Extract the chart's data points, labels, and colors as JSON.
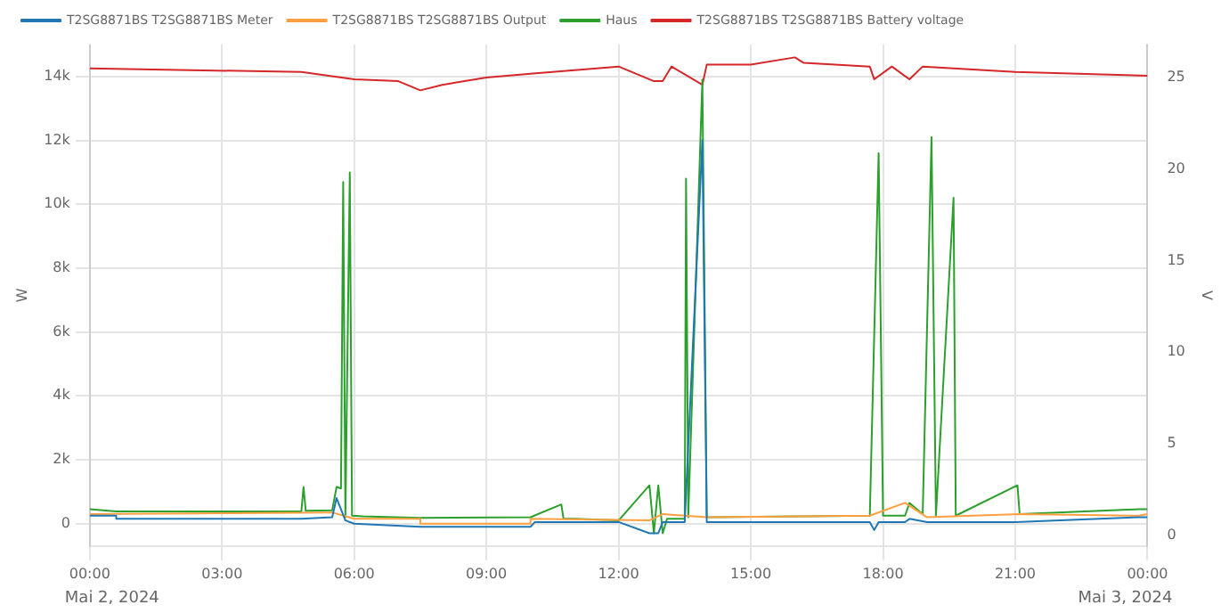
{
  "chart_data": {
    "type": "line",
    "ylabel": "W",
    "y2label": "V",
    "legend": "top",
    "marker": "none",
    "grid": true,
    "line_style": "solid",
    "xlim": [
      0,
      24
    ],
    "xticks": [
      {
        "value": 0,
        "label": "00:00"
      },
      {
        "value": 3,
        "label": "03:00"
      },
      {
        "value": 6,
        "label": "06:00"
      },
      {
        "value": 9,
        "label": "09:00"
      },
      {
        "value": 12,
        "label": "12:00"
      },
      {
        "value": 15,
        "label": "15:00"
      },
      {
        "value": 18,
        "label": "18:00"
      },
      {
        "value": 21,
        "label": "21:00"
      },
      {
        "value": 24,
        "label": "00:00"
      }
    ],
    "ylim": [
      -700,
      15000
    ],
    "yticks": [
      {
        "value": 0,
        "label": "0"
      },
      {
        "value": 2000,
        "label": "2k"
      },
      {
        "value": 4000,
        "label": "4k"
      },
      {
        "value": 6000,
        "label": "6k"
      },
      {
        "value": 8000,
        "label": "8k"
      },
      {
        "value": 10000,
        "label": "10k"
      },
      {
        "value": 12000,
        "label": "12k"
      },
      {
        "value": 14000,
        "label": "14k"
      }
    ],
    "y2lim": [
      -0.6,
      26.8
    ],
    "y2ticks": [
      0,
      5,
      10,
      15,
      20,
      25
    ],
    "annotations": [
      "Mai 2, 2024",
      "Mai 3, 2024"
    ],
    "series": [
      {
        "name": "T2SG8871BS T2SG8871BS Meter",
        "color": "#1f77b4",
        "x": [
          0,
          0.6,
          0.6,
          4.8,
          5.5,
          5.6,
          5.8,
          6,
          7.5,
          10,
          10.1,
          12,
          12.7,
          12.9,
          13,
          13.5,
          13.9,
          14,
          17.7,
          17.8,
          17.9,
          18.5,
          18.6,
          19,
          21,
          23.8,
          24
        ],
        "values": [
          250,
          250,
          150,
          150,
          200,
          800,
          100,
          0,
          -100,
          -100,
          50,
          50,
          -300,
          -300,
          50,
          50,
          12000,
          50,
          50,
          -200,
          50,
          50,
          150,
          50,
          50,
          200,
          200
        ]
      },
      {
        "name": "T2SG8871BS T2SG8871BS Output",
        "color": "#ff9f40",
        "x": [
          0,
          5.5,
          6,
          7.5,
          7.5,
          10,
          10,
          12.7,
          13,
          14,
          17.7,
          18.5,
          19,
          21.1,
          23.8,
          24
        ],
        "values": [
          300,
          350,
          150,
          150,
          0,
          0,
          150,
          100,
          300,
          200,
          250,
          650,
          200,
          300,
          250,
          300
        ]
      },
      {
        "name": "Haus",
        "color": "#2ca02c",
        "x": [
          0,
          0.6,
          0.6,
          4.8,
          4.85,
          4.9,
          5.5,
          5.6,
          5.7,
          5.75,
          5.8,
          5.9,
          5.95,
          6.2,
          7.5,
          10,
          10.7,
          10.75,
          11,
          12,
          12.7,
          12.8,
          12.9,
          13,
          13.1,
          13.5,
          13.53,
          13.58,
          13.9,
          14,
          14.1,
          17.7,
          17.9,
          18,
          18.5,
          18.6,
          18.9,
          19.1,
          19.2,
          19.6,
          19.65,
          21.05,
          21.1,
          23.8,
          24
        ],
        "values": [
          450,
          380,
          380,
          380,
          1150,
          400,
          420,
          1150,
          1100,
          10700,
          200,
          11000,
          250,
          230,
          180,
          200,
          600,
          150,
          150,
          100,
          1200,
          -300,
          1200,
          -300,
          150,
          150,
          10800,
          200,
          13900,
          200,
          200,
          250,
          11600,
          250,
          250,
          650,
          300,
          12100,
          250,
          10200,
          250,
          1200,
          300,
          450,
          450
        ]
      },
      {
        "name": "T2SG8871BS T2SG8871BS Battery voltage",
        "color": "#d62728",
        "axis": "y2",
        "x": [
          0,
          4.8,
          6,
          7,
          7.5,
          8,
          9,
          10,
          11,
          12,
          12.8,
          13,
          13.2,
          13.9,
          14,
          15,
          16,
          16.2,
          17.7,
          17.8,
          18.2,
          18.6,
          18.9,
          21,
          24
        ],
        "values": [
          25.5,
          25.3,
          24.9,
          24.8,
          24.3,
          24.6,
          25,
          25.2,
          25.4,
          25.6,
          24.8,
          24.8,
          25.6,
          24.6,
          25.7,
          25.7,
          26.1,
          25.8,
          25.6,
          24.9,
          25.6,
          24.9,
          25.6,
          25.3,
          25.1
        ]
      }
    ]
  }
}
